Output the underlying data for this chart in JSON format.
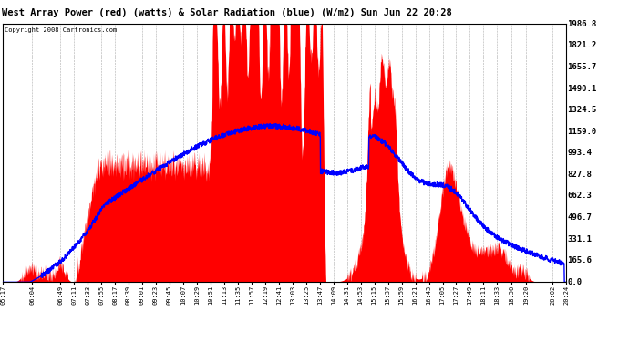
{
  "title": "West Array Power (red) (watts) & Solar Radiation (blue) (W/m2) Sun Jun 22 20:28",
  "copyright": "Copyright 2008 Cartronics.com",
  "background_color": "#ffffff",
  "plot_bg_color": "#ffffff",
  "grid_color": "#cccccc",
  "y_ticks": [
    0.0,
    165.6,
    331.1,
    496.7,
    662.3,
    827.8,
    993.4,
    1159.0,
    1324.5,
    1490.1,
    1655.7,
    1821.2,
    1986.8
  ],
  "x_labels": [
    "05:17",
    "06:04",
    "06:49",
    "07:11",
    "07:33",
    "07:55",
    "08:17",
    "08:39",
    "09:01",
    "09:23",
    "09:45",
    "10:07",
    "10:29",
    "10:51",
    "11:13",
    "11:35",
    "11:57",
    "12:19",
    "12:41",
    "13:03",
    "13:25",
    "13:47",
    "14:09",
    "14:31",
    "14:53",
    "15:15",
    "15:37",
    "15:59",
    "16:21",
    "16:43",
    "17:05",
    "17:27",
    "17:49",
    "18:11",
    "18:33",
    "18:56",
    "19:20",
    "20:02",
    "20:24"
  ],
  "ymax": 1986.8,
  "ymin": 0.0
}
